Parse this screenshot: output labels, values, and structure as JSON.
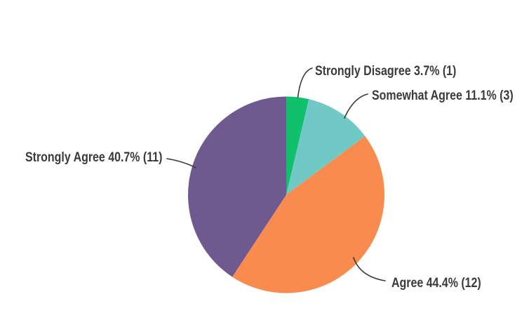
{
  "page": {
    "background_color": "#ffffff"
  },
  "chart_data": {
    "type": "pie",
    "title": "",
    "legend_position": "none",
    "label_style": "callout-with-leader-line",
    "label_color": "#3a3a3a",
    "start_angle_deg": 0,
    "direction": "clockwise",
    "slices": [
      {
        "label": "Strongly Disagree",
        "percent": 3.7,
        "count": 1,
        "color": "#10c06d",
        "display": "Strongly Disagree 3.7% (1)"
      },
      {
        "label": "Somewhat Agree",
        "percent": 11.1,
        "count": 3,
        "color": "#70c9c5",
        "display": "Somewhat Agree 11.1% (3)"
      },
      {
        "label": "Agree",
        "percent": 44.4,
        "count": 12,
        "color": "#f98b4e",
        "display": "Agree 44.4% (12)"
      },
      {
        "label": "Strongly Agree",
        "percent": 40.7,
        "count": 11,
        "color": "#6f5a8f",
        "display": "Strongly Agree 40.7% (11)"
      }
    ]
  }
}
